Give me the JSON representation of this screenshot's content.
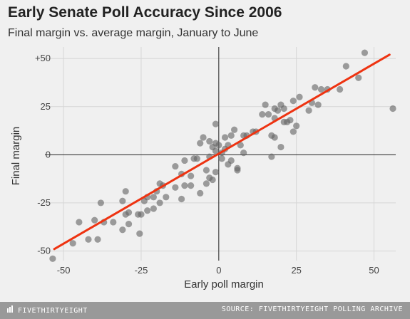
{
  "chart_data": {
    "type": "scatter",
    "title": "Early Senate Poll Accuracy Since 2006",
    "subtitle": "Final margin vs. average margin, January to June",
    "xlabel": "Early poll margin",
    "ylabel": "Final margin",
    "xlim": [
      -56,
      57
    ],
    "ylim": [
      -55,
      56
    ],
    "x_ticks": [
      -50,
      -25,
      0,
      25,
      50
    ],
    "x_tick_labels": [
      "-50",
      "-25",
      "0",
      "25",
      "50"
    ],
    "y_ticks": [
      50,
      25,
      0,
      -25,
      -50
    ],
    "y_tick_labels": [
      "+50",
      "25",
      "0",
      "-25",
      "-50"
    ],
    "grid": true,
    "colors": {
      "points": "#666666",
      "trend_line": "#ee3311",
      "zero_line": "#222222",
      "grid": "#d6d6d6"
    },
    "trend_line": {
      "x": [
        -53,
        55
      ],
      "y": [
        -49,
        52
      ]
    },
    "points": [
      {
        "x": -53.5,
        "y": -54
      },
      {
        "x": -47,
        "y": -46
      },
      {
        "x": -45,
        "y": -35
      },
      {
        "x": -42,
        "y": -44
      },
      {
        "x": -40,
        "y": -34
      },
      {
        "x": -39,
        "y": -44
      },
      {
        "x": -38,
        "y": -25
      },
      {
        "x": -37,
        "y": -35
      },
      {
        "x": -34,
        "y": -35
      },
      {
        "x": -31,
        "y": -39
      },
      {
        "x": -31,
        "y": -24
      },
      {
        "x": -30,
        "y": -31
      },
      {
        "x": -30,
        "y": -19
      },
      {
        "x": -29,
        "y": -30
      },
      {
        "x": -29,
        "y": -36
      },
      {
        "x": -26,
        "y": -31
      },
      {
        "x": -25.5,
        "y": -41
      },
      {
        "x": -25,
        "y": -31
      },
      {
        "x": -24,
        "y": -24
      },
      {
        "x": -23,
        "y": -22
      },
      {
        "x": -23,
        "y": -29
      },
      {
        "x": -21,
        "y": -28
      },
      {
        "x": -21,
        "y": -22
      },
      {
        "x": -20,
        "y": -19
      },
      {
        "x": -19,
        "y": -25
      },
      {
        "x": -19,
        "y": -15
      },
      {
        "x": -18,
        "y": -16
      },
      {
        "x": -17,
        "y": -22
      },
      {
        "x": -14,
        "y": -17
      },
      {
        "x": -14,
        "y": -6
      },
      {
        "x": -12,
        "y": -10
      },
      {
        "x": -12,
        "y": -23
      },
      {
        "x": -11,
        "y": -3
      },
      {
        "x": -11,
        "y": -16
      },
      {
        "x": -9,
        "y": -16
      },
      {
        "x": -9,
        "y": -11
      },
      {
        "x": -8,
        "y": -2
      },
      {
        "x": -7,
        "y": -2
      },
      {
        "x": -6,
        "y": 6
      },
      {
        "x": -6,
        "y": -20
      },
      {
        "x": -5,
        "y": 9
      },
      {
        "x": -4,
        "y": -15
      },
      {
        "x": -4,
        "y": -8
      },
      {
        "x": -3,
        "y": 7
      },
      {
        "x": -3,
        "y": -1
      },
      {
        "x": -3,
        "y": -12
      },
      {
        "x": -2,
        "y": 4
      },
      {
        "x": -2,
        "y": -13
      },
      {
        "x": -1,
        "y": 16
      },
      {
        "x": -1,
        "y": 6
      },
      {
        "x": -1,
        "y": 2
      },
      {
        "x": -1,
        "y": -9
      },
      {
        "x": 0,
        "y": 5
      },
      {
        "x": 1,
        "y": 1
      },
      {
        "x": 1,
        "y": -2
      },
      {
        "x": 2,
        "y": 9
      },
      {
        "x": 2,
        "y": 3
      },
      {
        "x": 3,
        "y": -5
      },
      {
        "x": 3,
        "y": 5
      },
      {
        "x": 4,
        "y": 10
      },
      {
        "x": 4,
        "y": -3
      },
      {
        "x": 5,
        "y": 13
      },
      {
        "x": 6,
        "y": -7
      },
      {
        "x": 6,
        "y": -8
      },
      {
        "x": 7,
        "y": 5
      },
      {
        "x": 8,
        "y": 1
      },
      {
        "x": 8,
        "y": 10
      },
      {
        "x": 9,
        "y": 10
      },
      {
        "x": 11,
        "y": 12
      },
      {
        "x": 12,
        "y": 12
      },
      {
        "x": 14,
        "y": 21
      },
      {
        "x": 15,
        "y": 26
      },
      {
        "x": 16,
        "y": 21
      },
      {
        "x": 17,
        "y": 10
      },
      {
        "x": 17,
        "y": -1
      },
      {
        "x": 18,
        "y": 9
      },
      {
        "x": 18,
        "y": 24
      },
      {
        "x": 18,
        "y": 19
      },
      {
        "x": 19,
        "y": 23
      },
      {
        "x": 20,
        "y": 4
      },
      {
        "x": 20,
        "y": 26
      },
      {
        "x": 21,
        "y": 17
      },
      {
        "x": 21,
        "y": 24
      },
      {
        "x": 22,
        "y": 17
      },
      {
        "x": 23,
        "y": 18
      },
      {
        "x": 24,
        "y": 28
      },
      {
        "x": 24,
        "y": 12
      },
      {
        "x": 25,
        "y": 15
      },
      {
        "x": 26,
        "y": 30
      },
      {
        "x": 29,
        "y": 23
      },
      {
        "x": 30,
        "y": 27
      },
      {
        "x": 31,
        "y": 35
      },
      {
        "x": 32,
        "y": 26
      },
      {
        "x": 33,
        "y": 34
      },
      {
        "x": 35,
        "y": 34
      },
      {
        "x": 39,
        "y": 34
      },
      {
        "x": 41,
        "y": 46
      },
      {
        "x": 45,
        "y": 40
      },
      {
        "x": 47,
        "y": 53
      },
      {
        "x": 61,
        "y": 24
      }
    ]
  },
  "footer": {
    "brand": "FIVETHIRTYEIGHT",
    "source": "SOURCE: FIVETHIRTYEIGHT POLLING ARCHIVE"
  }
}
